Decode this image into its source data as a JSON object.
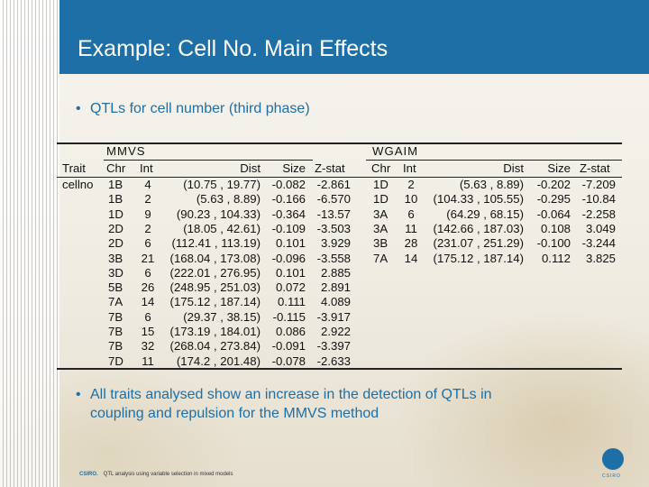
{
  "slide": {
    "title": "Example: Cell No. Main Effects",
    "bullet1": "QTLs for cell number (third phase)",
    "bullet2_line1": "All traits analysed show an increase in the detection of QTLs in",
    "bullet2_line2": "coupling and repulsion for the MMVS method",
    "bullet_glyph": "•",
    "footer_org": "CSIRO.",
    "footer_text": "QTL analysis using variable selection in mixed models",
    "logo_text": "CSIRO"
  },
  "table": {
    "group_left": "MMVS",
    "group_right": "WGAIM",
    "headers_left": [
      "Trait",
      "Chr",
      "Int",
      "Dist",
      "Size",
      "Z-stat"
    ],
    "headers_right": [
      "Chr",
      "Int",
      "Dist",
      "Size",
      "Z-stat"
    ],
    "trait": "cellno",
    "mmvs_rows": [
      [
        "1B",
        "4",
        "(10.75 , 19.77)",
        "-0.082",
        "-2.861"
      ],
      [
        "1B",
        "2",
        "(5.63 , 8.89)",
        "-0.166",
        "-6.570"
      ],
      [
        "1D",
        "9",
        "(90.23 , 104.33)",
        "-0.364",
        "-13.57"
      ],
      [
        "2D",
        "2",
        "(18.05 , 42.61)",
        "-0.109",
        "-3.503"
      ],
      [
        "2D",
        "6",
        "(112.41 , 113.19)",
        "0.101",
        "3.929"
      ],
      [
        "3B",
        "21",
        "(168.04 , 173.08)",
        "-0.096",
        "-3.558"
      ],
      [
        "3D",
        "6",
        "(222.01 , 276.95)",
        "0.101",
        "2.885"
      ],
      [
        "5B",
        "26",
        "(248.95 , 251.03)",
        "0.072",
        "2.891"
      ],
      [
        "7A",
        "14",
        "(175.12 , 187.14)",
        "0.111",
        "4.089"
      ],
      [
        "7B",
        "6",
        "(29.37 , 38.15)",
        "-0.115",
        "-3.917"
      ],
      [
        "7B",
        "15",
        "(173.19 , 184.01)",
        "0.086",
        "2.922"
      ],
      [
        "7B",
        "32",
        "(268.04 , 273.84)",
        "-0.091",
        "-3.397"
      ],
      [
        "7D",
        "11",
        "(174.2 , 201.48)",
        "-0.078",
        "-2.633"
      ]
    ],
    "wgaim_rows": [
      [
        "1D",
        "2",
        "(5.63 , 8.89)",
        "-0.202",
        "-7.209"
      ],
      [
        "1D",
        "10",
        "(104.33 , 105.55)",
        "-0.295",
        "-10.84"
      ],
      [
        "3A",
        "6",
        "(64.29 , 68.15)",
        "-0.064",
        "-2.258"
      ],
      [
        "3A",
        "11",
        "(142.66 , 187.03)",
        "0.108",
        "3.049"
      ],
      [
        "3B",
        "28",
        "(231.07 , 251.29)",
        "-0.100",
        "-3.244"
      ],
      [
        "7A",
        "14",
        "(175.12 , 187.14)",
        "0.112",
        "3.825"
      ]
    ]
  }
}
